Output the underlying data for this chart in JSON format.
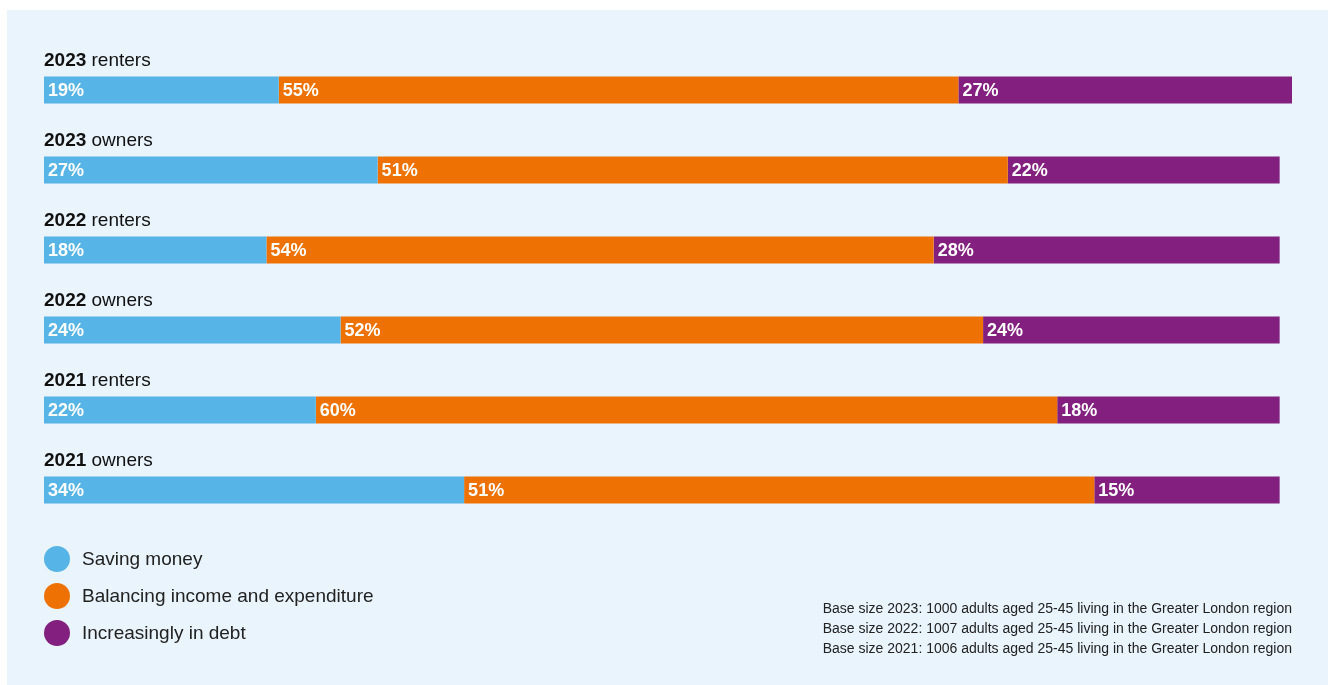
{
  "chart_data": {
    "type": "bar",
    "orientation": "horizontal",
    "stacked": true,
    "legend": "bottom left",
    "categories": [
      "2023 renters",
      "2023 owners",
      "2022 renters",
      "2022 owners",
      "2021 renters",
      "2021 owners"
    ],
    "series": [
      {
        "name": "Saving money",
        "color": "#56b4e6",
        "values": [
          19,
          27,
          18,
          24,
          22,
          34
        ],
        "value_labels": [
          "19%",
          "27%",
          "18%",
          "24%",
          "22%",
          "34%"
        ]
      },
      {
        "name": "Balancing income and expenditure",
        "color": "#ee7203",
        "values": [
          55,
          51,
          54,
          52,
          60,
          51
        ],
        "value_labels": [
          "55%",
          "51%",
          "54%",
          "52%",
          "60%",
          "51%"
        ]
      },
      {
        "name": "Increasingly in debt",
        "color": "#83207f",
        "values": [
          27,
          22,
          28,
          24,
          18,
          15
        ],
        "value_labels": [
          "27%",
          "22%",
          "28%",
          "24%",
          "18%",
          "15%"
        ]
      }
    ],
    "annotations": [
      "Base size 2023: 1000 adults aged 25-45 living in the Greater London region",
      "Base size 2022: 1007 adults aged 25-45 living in the Greater London region",
      "Base size 2021: 1006 adults aged 25-45 living in the Greater London region"
    ]
  }
}
